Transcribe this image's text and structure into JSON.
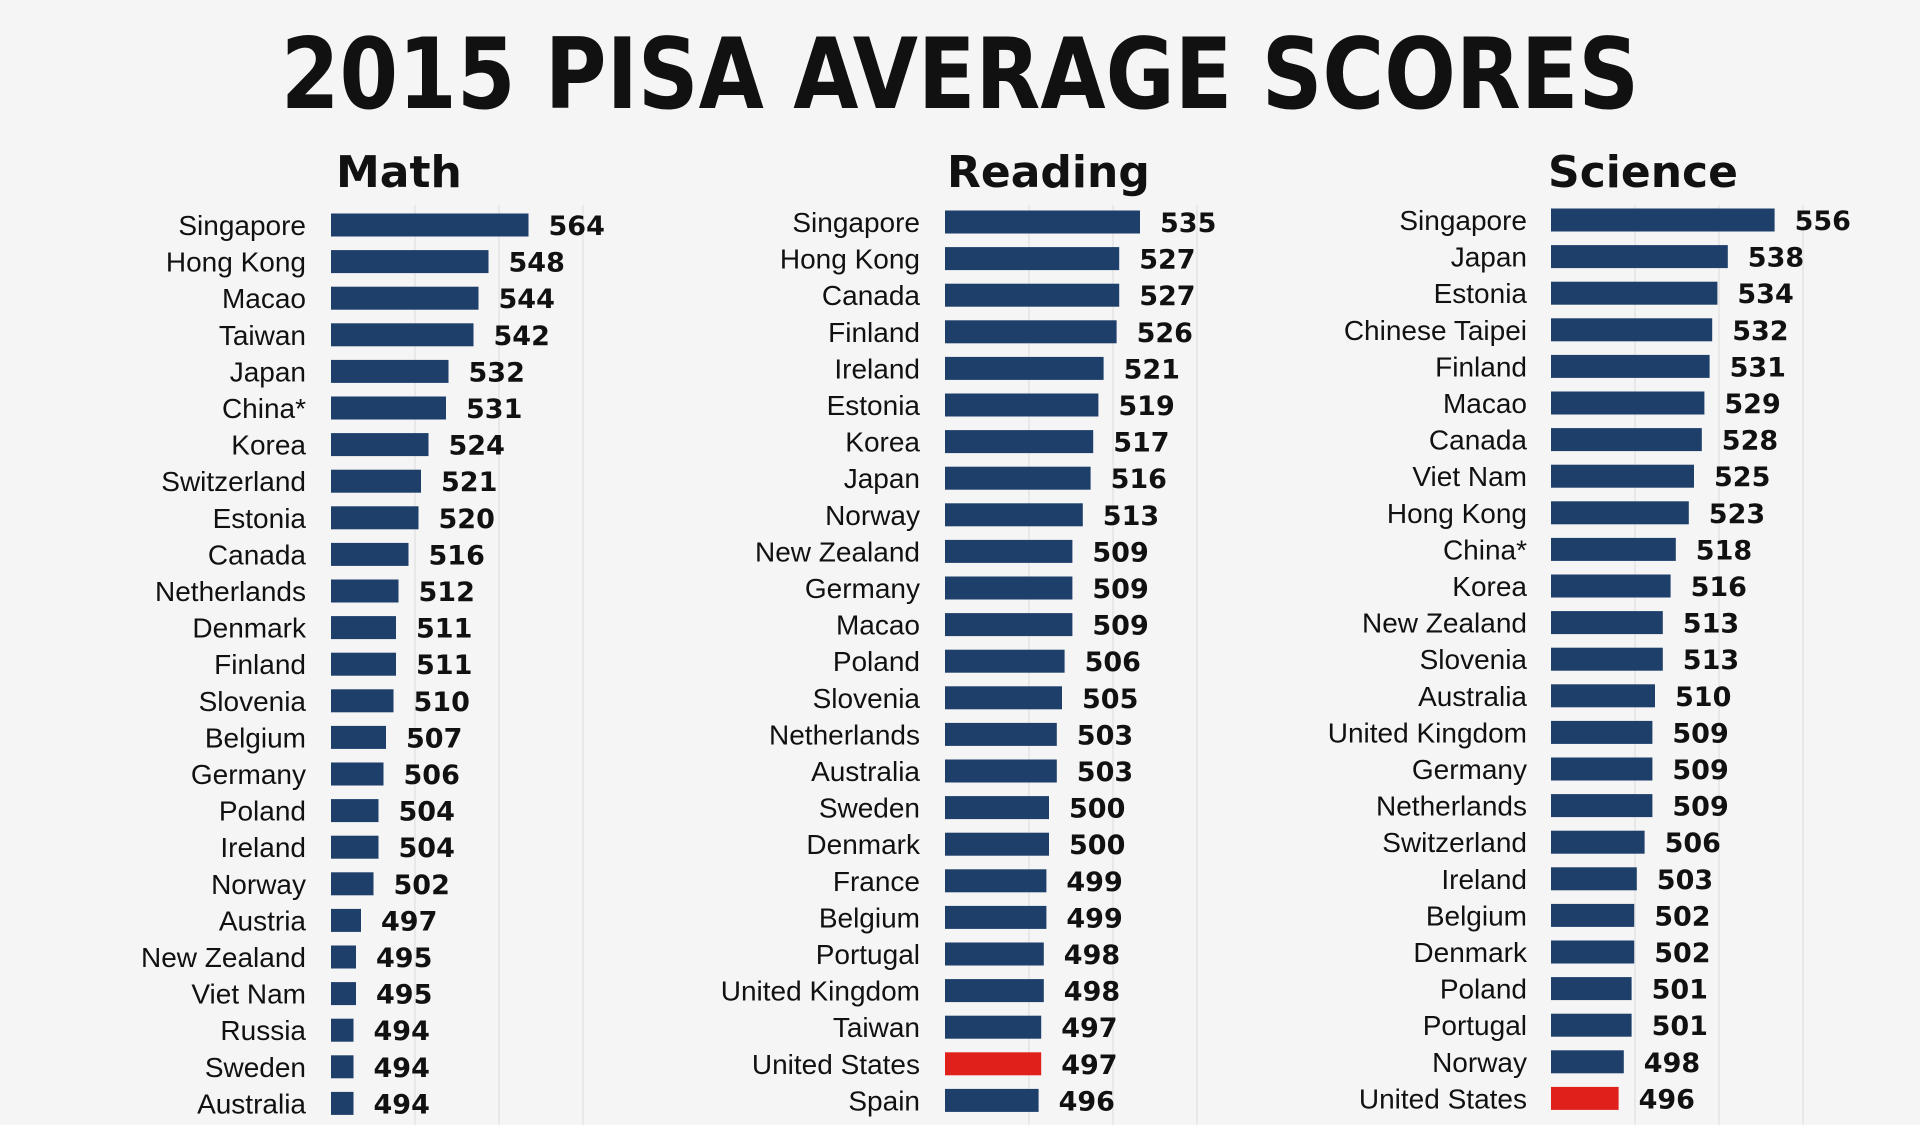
{
  "title": "2015 PISA AVERAGE SCORES",
  "colors": {
    "bar": "#1d3f6a",
    "highlight": "#e0201b",
    "background": "#f5f5f5"
  },
  "chart_data": [
    {
      "type": "bar",
      "orientation": "horizontal",
      "title": "Math",
      "categories": [
        "Singapore",
        "Hong Kong",
        "Macao",
        "Taiwan",
        "Japan",
        "China*",
        "Korea",
        "Switzerland",
        "Estonia",
        "Canada",
        "Netherlands",
        "Denmark",
        "Finland",
        "Slovenia",
        "Belgium",
        "Germany",
        "Poland",
        "Ireland",
        "Norway",
        "Austria",
        "New Zealand",
        "Viet Nam",
        "Russia",
        "Sweden",
        "Australia"
      ],
      "values": [
        564,
        548,
        544,
        542,
        532,
        531,
        524,
        521,
        520,
        516,
        512,
        511,
        511,
        510,
        507,
        506,
        504,
        504,
        502,
        497,
        495,
        495,
        494,
        494,
        494
      ],
      "highlight": [],
      "grid": true
    },
    {
      "type": "bar",
      "orientation": "horizontal",
      "title": "Reading",
      "categories": [
        "Singapore",
        "Hong Kong",
        "Canada",
        "Finland",
        "Ireland",
        "Estonia",
        "Korea",
        "Japan",
        "Norway",
        "New Zealand",
        "Germany",
        "Macao",
        "Poland",
        "Slovenia",
        "Netherlands",
        "Australia",
        "Sweden",
        "Denmark",
        "France",
        "Belgium",
        "Portugal",
        "United Kingdom",
        "Taiwan",
        "United States",
        "Spain"
      ],
      "values": [
        535,
        527,
        527,
        526,
        521,
        519,
        517,
        516,
        513,
        509,
        509,
        509,
        506,
        505,
        503,
        503,
        500,
        500,
        499,
        499,
        498,
        498,
        497,
        497,
        496
      ],
      "highlight": [
        "United States"
      ],
      "grid": true
    },
    {
      "type": "bar",
      "orientation": "horizontal",
      "title": "Science",
      "categories": [
        "Singapore",
        "Japan",
        "Estonia",
        "Chinese Taipei",
        "Finland",
        "Macao",
        "Canada",
        "Viet Nam",
        "Hong Kong",
        "China*",
        "Korea",
        "New Zealand",
        "Slovenia",
        "Australia",
        "United Kingdom",
        "Germany",
        "Netherlands",
        "Switzerland",
        "Ireland",
        "Belgium",
        "Denmark",
        "Poland",
        "Portugal",
        "Norway",
        "United States"
      ],
      "values": [
        556,
        538,
        534,
        532,
        531,
        529,
        528,
        525,
        523,
        518,
        516,
        513,
        513,
        510,
        509,
        509,
        509,
        506,
        503,
        502,
        502,
        501,
        501,
        498,
        496
      ],
      "highlight": [
        "United States"
      ],
      "grid": true
    }
  ]
}
